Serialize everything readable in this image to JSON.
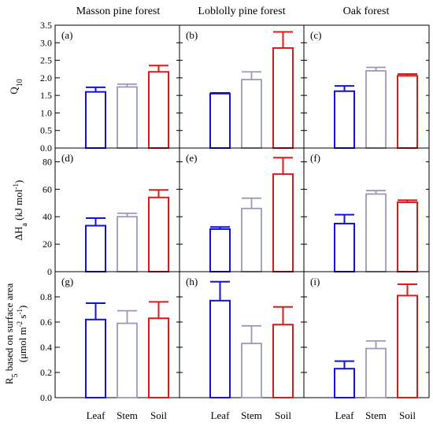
{
  "figure": {
    "columns": [
      "Masson pine forest",
      "Loblolly pine forest",
      "Oak forest"
    ],
    "categories": [
      "Leaf",
      "Stem",
      "Soil"
    ],
    "colors": {
      "Leaf": "#1010e0",
      "Stem": "#9a9ab8",
      "Soil": "#e01818"
    }
  },
  "rows": [
    {
      "ylabel": [
        "Q",
        "10"
      ],
      "ylim": [
        0,
        3.5
      ],
      "ticks": [
        "0.0",
        "0.5",
        "1.0",
        "1.5",
        "2.0",
        "2.5",
        "3.0",
        "3.5"
      ]
    },
    {
      "ylabel": [
        "ΔH",
        "a",
        " (kJ mol",
        "-1",
        ")"
      ],
      "ylim": [
        0,
        90
      ],
      "ticks": [
        "0",
        "20",
        "40",
        "60",
        "80"
      ]
    },
    {
      "ylabel_line1": [
        "R",
        "5",
        " based on surface area"
      ],
      "ylabel_line2": [
        "(μmol m",
        "-2",
        " s",
        "-1",
        ")"
      ],
      "ylim": [
        0,
        1.0
      ],
      "ticks": [
        "0.0",
        "0.2",
        "0.4",
        "0.6",
        "0.8"
      ]
    }
  ],
  "chart_data": [
    {
      "type": "bar",
      "panel": "(a)",
      "title": "Masson pine forest",
      "ylabel": "Q10",
      "categories": [
        "Leaf",
        "Stem",
        "Soil"
      ],
      "values": [
        1.6,
        1.74,
        2.17
      ],
      "error": [
        0.13,
        0.08,
        0.18
      ],
      "ylim": [
        0,
        3.5
      ]
    },
    {
      "type": "bar",
      "panel": "(b)",
      "title": "Loblolly pine forest",
      "ylabel": "Q10",
      "categories": [
        "Leaf",
        "Stem",
        "Soil"
      ],
      "values": [
        1.55,
        1.95,
        2.85
      ],
      "error": [
        0.02,
        0.22,
        0.46
      ],
      "ylim": [
        0,
        3.5
      ]
    },
    {
      "type": "bar",
      "panel": "(c)",
      "title": "Oak forest",
      "ylabel": "Q10",
      "categories": [
        "Leaf",
        "Stem",
        "Soil"
      ],
      "values": [
        1.62,
        2.2,
        2.06
      ],
      "error": [
        0.15,
        0.1,
        0.05
      ],
      "ylim": [
        0,
        3.5
      ]
    },
    {
      "type": "bar",
      "panel": "(d)",
      "ylabel": "ΔHa (kJ mol-1)",
      "categories": [
        "Leaf",
        "Stem",
        "Soil"
      ],
      "values": [
        33.5,
        40.0,
        54.0
      ],
      "error": [
        5.5,
        2.5,
        5.5
      ],
      "ylim": [
        0,
        90
      ]
    },
    {
      "type": "bar",
      "panel": "(e)",
      "ylabel": "ΔHa (kJ mol-1)",
      "categories": [
        "Leaf",
        "Stem",
        "Soil"
      ],
      "values": [
        31.0,
        46.0,
        71.0
      ],
      "error": [
        1.5,
        7.5,
        12.0
      ],
      "ylim": [
        0,
        90
      ]
    },
    {
      "type": "bar",
      "panel": "(f)",
      "ylabel": "ΔHa (kJ mol-1)",
      "categories": [
        "Leaf",
        "Stem",
        "Soil"
      ],
      "values": [
        35.0,
        56.5,
        50.5
      ],
      "error": [
        6.5,
        2.5,
        1.5
      ],
      "ylim": [
        0,
        90
      ]
    },
    {
      "type": "bar",
      "panel": "(g)",
      "ylabel": "R5 based on surface area (μmol m-2 s-1)",
      "categories": [
        "Leaf",
        "Stem",
        "Soil"
      ],
      "values": [
        0.62,
        0.59,
        0.63
      ],
      "error": [
        0.13,
        0.1,
        0.13
      ],
      "ylim": [
        0,
        1.0
      ]
    },
    {
      "type": "bar",
      "panel": "(h)",
      "ylabel": "R5 based on surface area (μmol m-2 s-1)",
      "categories": [
        "Leaf",
        "Stem",
        "Soil"
      ],
      "values": [
        0.77,
        0.43,
        0.58
      ],
      "error": [
        0.15,
        0.14,
        0.14
      ],
      "ylim": [
        0,
        1.0
      ]
    },
    {
      "type": "bar",
      "panel": "(i)",
      "ylabel": "R5 based on surface area (μmol m-2 s-1)",
      "categories": [
        "Leaf",
        "Stem",
        "Soil"
      ],
      "values": [
        0.23,
        0.39,
        0.81
      ],
      "error": [
        0.06,
        0.06,
        0.09
      ],
      "ylim": [
        0,
        1.0
      ]
    }
  ]
}
